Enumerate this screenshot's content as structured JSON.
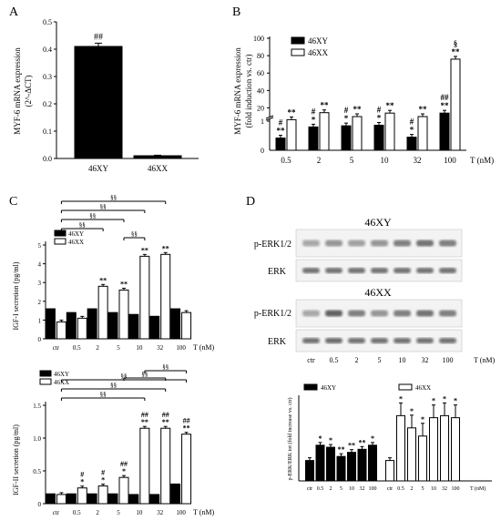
{
  "panels": {
    "A": "A",
    "B": "B",
    "C": "C",
    "D": "D"
  },
  "chart_data": [
    {
      "id": "A",
      "type": "bar",
      "categories": [
        "46XY",
        "46XX"
      ],
      "values": [
        0.41,
        0.01
      ],
      "errors": [
        0.012,
        0.002
      ],
      "marks": [
        "##",
        ""
      ],
      "ylabel": "MYF-6 mRNA expression",
      "ylabel2": "(2^-ΔCT)",
      "ylim": [
        0,
        0.5
      ],
      "yticks": [
        "0.0",
        "0.1",
        "0.2",
        "0.3",
        "0.4",
        "0.5"
      ]
    },
    {
      "id": "B",
      "type": "bar",
      "categories": [
        "0.5",
        "2",
        "5",
        "10",
        "32",
        "100"
      ],
      "xlabel": "T (nM)",
      "ylabel": "MYF-6 mRNA expression",
      "ylabel2": "(fold induction vs. ctr)",
      "axis_break": true,
      "yticks_lower": [
        "0",
        "1"
      ],
      "yticks_upper": [
        "20",
        "40",
        "60",
        "80",
        "100"
      ],
      "legend": [
        "46XY",
        "46XX"
      ],
      "series": [
        {
          "name": "46XY",
          "values": [
            0.42,
            0.8,
            0.84,
            0.86,
            0.45,
            14.0
          ],
          "marks": [
            [
              "#",
              "**"
            ],
            [
              "#",
              "*"
            ],
            [
              "#",
              "*"
            ],
            [
              "#",
              "*"
            ],
            [
              "#",
              "*"
            ],
            [
              "##",
              "**"
            ]
          ]
        },
        {
          "name": "46XX",
          "values": [
            1.05,
            14.5,
            10.0,
            14.0,
            7.0,
            76.0
          ],
          "marks": [
            [
              "**"
            ],
            [
              "**"
            ],
            [
              "**"
            ],
            [
              "**"
            ],
            [
              "**"
            ],
            [
              "§",
              "**"
            ]
          ]
        }
      ]
    },
    {
      "id": "C1",
      "type": "bar",
      "categories": [
        "ctr",
        "0.5",
        "2",
        "5",
        "10",
        "32",
        "100"
      ],
      "xlabel": "T (nM)",
      "ylabel": "IGF-I secretion (pg/ml)",
      "ylim": [
        0,
        5
      ],
      "yticks": [
        "0",
        "1",
        "2",
        "3",
        "4",
        "5"
      ],
      "legend": [
        "46XY",
        "46XX"
      ],
      "brackets": [
        "§§",
        "§§",
        "§§",
        "§§",
        "§§"
      ],
      "series": [
        {
          "name": "46XY",
          "values": [
            1.6,
            1.4,
            1.6,
            1.4,
            1.3,
            1.2,
            1.6
          ],
          "marks": [
            "",
            "",
            "",
            "",
            "",
            "",
            ""
          ]
        },
        {
          "name": "46XX",
          "values": [
            0.9,
            1.1,
            2.8,
            2.6,
            4.4,
            4.5,
            1.4
          ],
          "marks": [
            "",
            "",
            "**",
            "**",
            "**",
            "**",
            ""
          ]
        }
      ]
    },
    {
      "id": "C2",
      "type": "bar",
      "categories": [
        "ctr",
        "0.5",
        "2",
        "5",
        "10",
        "32",
        "100"
      ],
      "xlabel": "T (nM)",
      "ylabel": "IGF-II secretion (pg/ml)",
      "ylim": [
        0,
        1.5
      ],
      "yticks": [
        "0",
        "0.5",
        "1.0",
        "1.5"
      ],
      "legend": [
        "46XY",
        "46XX"
      ],
      "brackets": [
        "§§",
        "§§",
        "§§",
        "§§",
        "§§"
      ],
      "series": [
        {
          "name": "46XY",
          "values": [
            0.15,
            0.15,
            0.15,
            0.15,
            0.14,
            0.14,
            0.3
          ],
          "marks": [
            "",
            "",
            "",
            "",
            "",
            "",
            ""
          ]
        },
        {
          "name": "46XX",
          "values": [
            0.14,
            0.24,
            0.27,
            0.4,
            1.15,
            1.15,
            1.06
          ],
          "marks": [
            [
              ""
            ],
            [
              "#",
              "*"
            ],
            [
              "#",
              "*"
            ],
            [
              "##",
              "*"
            ],
            [
              "##",
              "**"
            ],
            [
              "##",
              "**"
            ],
            [
              "##",
              "**"
            ]
          ]
        }
      ]
    },
    {
      "id": "D",
      "type": "bar",
      "categories": [
        "ctr",
        "0.5",
        "2",
        "5",
        "10",
        "32",
        "100"
      ],
      "xlabel": "T (nM)",
      "ylabel": "p-ERK/ERK tot (fold increase vs. ctr)",
      "legend": [
        "46XY",
        "46XX"
      ],
      "series": [
        {
          "name": "46XY",
          "values": [
            1.0,
            1.75,
            1.65,
            1.2,
            1.4,
            1.55,
            1.75
          ],
          "marks": [
            "",
            "*",
            "*",
            "**",
            "**",
            "**",
            "*"
          ]
        },
        {
          "name": "46XX",
          "values": [
            1.0,
            3.2,
            2.6,
            2.2,
            3.1,
            3.2,
            3.1
          ],
          "marks": [
            "",
            "*",
            "*",
            "*",
            "*",
            "*",
            "*"
          ]
        }
      ]
    }
  ],
  "blots": {
    "title_xy": "46XY",
    "title_xx": "46XX",
    "row_perk": "p-ERK1/2",
    "row_erk": "ERK",
    "lanes": [
      "ctr",
      "0.5",
      "2",
      "5",
      "10",
      "32",
      "100"
    ],
    "xlabel": "T (nM)"
  }
}
